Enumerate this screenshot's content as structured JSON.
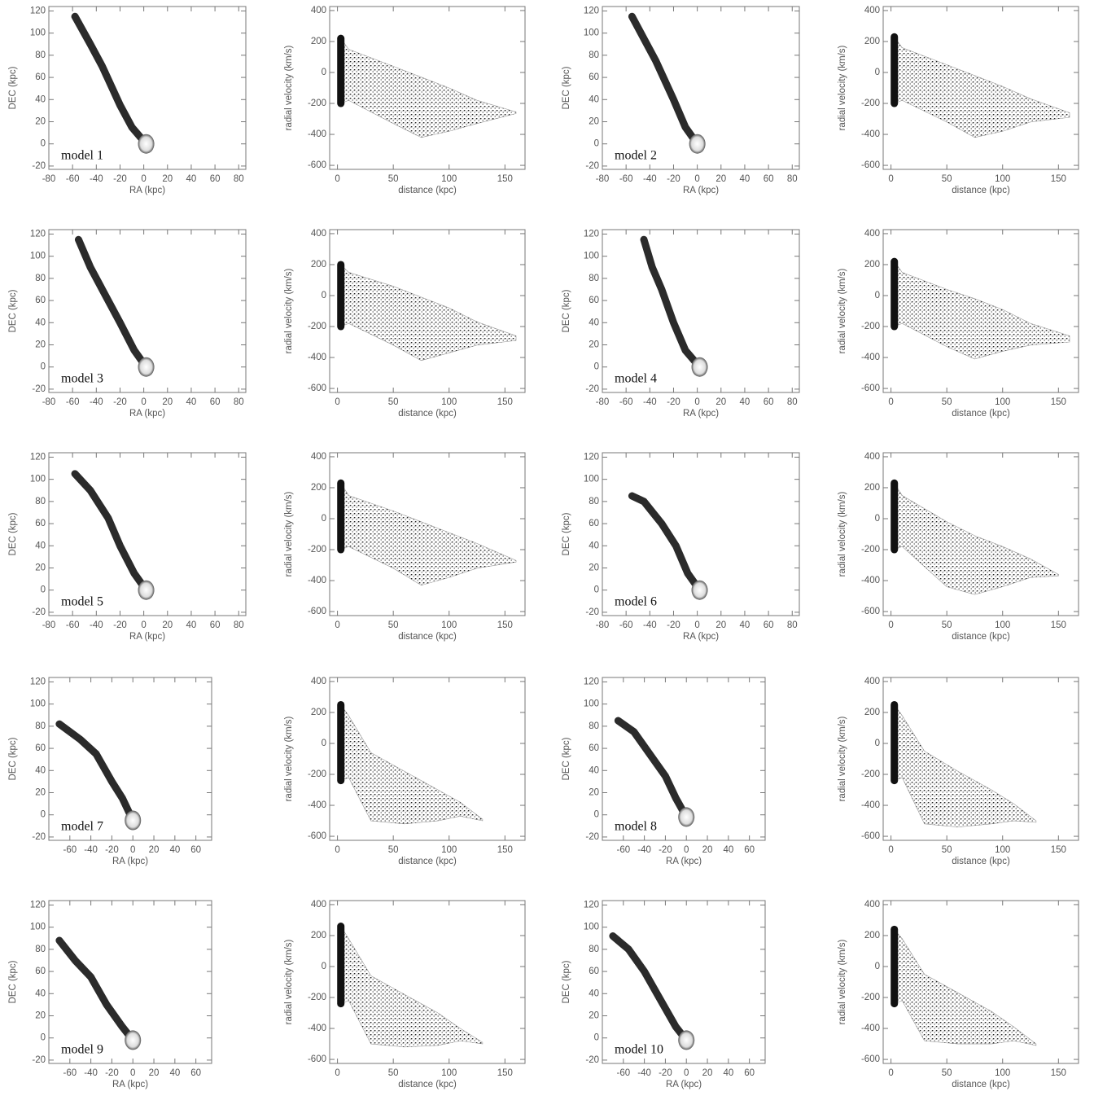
{
  "chart_data": [
    {
      "type": "stream",
      "x_label": "RA (kpc)",
      "y_label": "DEC (kpc)",
      "annotation": "model 1",
      "color": "#2b2b2b",
      "xlim": [
        -80,
        86
      ],
      "ylim": [
        -23,
        124
      ],
      "xticks": [
        -80,
        -60,
        -40,
        -20,
        0,
        20,
        40,
        60,
        80
      ],
      "yticks": [
        -20,
        0,
        20,
        40,
        60,
        80,
        100,
        120
      ],
      "x": [
        -58,
        -45,
        -35,
        -20,
        -10,
        2
      ],
      "y": [
        115,
        90,
        70,
        35,
        15,
        0
      ]
    },
    {
      "type": "phase",
      "x_label": "distance (kpc)",
      "y_label": "radial velocity (km/s)",
      "color": "#3a3a3a",
      "xlim": [
        -7,
        168
      ],
      "ylim": [
        -626,
        426
      ],
      "xticks": [
        0,
        50,
        100,
        150
      ],
      "yticks": [
        -600,
        -400,
        -200,
        0,
        200,
        400
      ],
      "x": [
        3,
        10,
        50,
        75,
        100,
        125,
        160
      ],
      "y_max": [
        220,
        150,
        40,
        -30,
        -100,
        -180,
        -255
      ],
      "y_min": [
        -200,
        -180,
        -330,
        -420,
        -380,
        -330,
        -265
      ]
    },
    {
      "type": "stream",
      "x_label": "RA (kpc)",
      "y_label": "DEC (kpc)",
      "annotation": "model 2",
      "color": "#2b2b2b",
      "xlim": [
        -80,
        86
      ],
      "ylim": [
        -23,
        124
      ],
      "xticks": [
        -80,
        -60,
        -40,
        -20,
        0,
        20,
        40,
        60,
        80
      ],
      "yticks": [
        -20,
        0,
        20,
        40,
        60,
        80,
        100,
        120
      ],
      "x": [
        -55,
        -45,
        -35,
        -20,
        -10,
        0
      ],
      "y": [
        115,
        95,
        75,
        40,
        15,
        0
      ]
    },
    {
      "type": "phase",
      "x_label": "distance (kpc)",
      "y_label": "radial velocity (km/s)",
      "color": "#3a3a3a",
      "xlim": [
        -7,
        168
      ],
      "ylim": [
        -626,
        426
      ],
      "xticks": [
        0,
        50,
        100,
        150
      ],
      "yticks": [
        -600,
        -400,
        -200,
        0,
        200,
        400
      ],
      "x": [
        3,
        10,
        50,
        75,
        100,
        125,
        160
      ],
      "y_max": [
        230,
        160,
        50,
        -20,
        -90,
        -170,
        -260
      ],
      "y_min": [
        -200,
        -180,
        -320,
        -420,
        -380,
        -320,
        -290
      ]
    },
    {
      "type": "stream",
      "x_label": "RA (kpc)",
      "y_label": "DEC (kpc)",
      "annotation": "model 3",
      "color": "#2b2b2b",
      "xlim": [
        -80,
        86
      ],
      "ylim": [
        -23,
        124
      ],
      "xticks": [
        -80,
        -60,
        -40,
        -20,
        0,
        20,
        40,
        60,
        80
      ],
      "yticks": [
        -20,
        0,
        20,
        40,
        60,
        80,
        100,
        120
      ],
      "x": [
        -55,
        -45,
        -35,
        -20,
        -8,
        2
      ],
      "y": [
        115,
        90,
        70,
        40,
        15,
        0
      ]
    },
    {
      "type": "phase",
      "x_label": "distance (kpc)",
      "y_label": "radial velocity (km/s)",
      "color": "#3a3a3a",
      "xlim": [
        -7,
        168
      ],
      "ylim": [
        -626,
        426
      ],
      "xticks": [
        0,
        50,
        100,
        150
      ],
      "yticks": [
        -600,
        -400,
        -200,
        0,
        200,
        400
      ],
      "x": [
        3,
        10,
        50,
        75,
        100,
        125,
        160
      ],
      "y_max": [
        200,
        150,
        60,
        -10,
        -80,
        -170,
        -260
      ],
      "y_min": [
        -200,
        -180,
        -320,
        -420,
        -370,
        -320,
        -290
      ]
    },
    {
      "type": "stream",
      "x_label": "RA (kpc)",
      "y_label": "DEC (kpc)",
      "annotation": "model 4",
      "color": "#2b2b2b",
      "xlim": [
        -80,
        86
      ],
      "ylim": [
        -23,
        124
      ],
      "xticks": [
        -80,
        -60,
        -40,
        -20,
        0,
        20,
        40,
        60,
        80
      ],
      "yticks": [
        -20,
        0,
        20,
        40,
        60,
        80,
        100,
        120
      ],
      "x": [
        -45,
        -38,
        -30,
        -20,
        -10,
        2
      ],
      "y": [
        115,
        90,
        70,
        40,
        15,
        0
      ]
    },
    {
      "type": "phase",
      "x_label": "distance (kpc)",
      "y_label": "radial velocity (km/s)",
      "color": "#3a3a3a",
      "xlim": [
        -7,
        168
      ],
      "ylim": [
        -626,
        426
      ],
      "xticks": [
        0,
        50,
        100,
        150
      ],
      "yticks": [
        -600,
        -400,
        -200,
        0,
        200,
        400
      ],
      "x": [
        3,
        10,
        50,
        75,
        100,
        125,
        160
      ],
      "y_max": [
        220,
        150,
        40,
        -20,
        -90,
        -180,
        -260
      ],
      "y_min": [
        -200,
        -180,
        -330,
        -410,
        -360,
        -320,
        -300
      ]
    },
    {
      "type": "stream",
      "x_label": "RA (kpc)",
      "y_label": "DEC (kpc)",
      "annotation": "model 5",
      "color": "#2b2b2b",
      "xlim": [
        -80,
        86
      ],
      "ylim": [
        -23,
        124
      ],
      "xticks": [
        -80,
        -60,
        -40,
        -20,
        0,
        20,
        40,
        60,
        80
      ],
      "yticks": [
        -20,
        0,
        20,
        40,
        60,
        80,
        100,
        120
      ],
      "x": [
        -58,
        -45,
        -30,
        -20,
        -8,
        2
      ],
      "y": [
        105,
        90,
        65,
        40,
        15,
        0
      ]
    },
    {
      "type": "phase",
      "x_label": "distance (kpc)",
      "y_label": "radial velocity (km/s)",
      "color": "#3a3a3a",
      "xlim": [
        -7,
        168
      ],
      "ylim": [
        -626,
        426
      ],
      "xticks": [
        0,
        50,
        100,
        150
      ],
      "yticks": [
        -600,
        -400,
        -200,
        0,
        200,
        400
      ],
      "x": [
        3,
        10,
        50,
        75,
        100,
        125,
        160
      ],
      "y_max": [
        230,
        150,
        50,
        -20,
        -90,
        -160,
        -270
      ],
      "y_min": [
        -200,
        -180,
        -320,
        -430,
        -380,
        -320,
        -280
      ]
    },
    {
      "type": "stream",
      "x_label": "RA (kpc)",
      "y_label": "DEC (kpc)",
      "annotation": "model 6",
      "color": "#2b2b2b",
      "xlim": [
        -80,
        86
      ],
      "ylim": [
        -23,
        124
      ],
      "xticks": [
        -80,
        -60,
        -40,
        -20,
        0,
        20,
        40,
        60,
        80
      ],
      "yticks": [
        -20,
        0,
        20,
        40,
        60,
        80,
        100,
        120
      ],
      "x": [
        -55,
        -45,
        -30,
        -18,
        -8,
        2
      ],
      "y": [
        85,
        80,
        60,
        40,
        15,
        0
      ]
    },
    {
      "type": "phase",
      "x_label": "distance (kpc)",
      "y_label": "radial velocity (km/s)",
      "color": "#3a3a3a",
      "xlim": [
        -7,
        168
      ],
      "ylim": [
        -626,
        426
      ],
      "xticks": [
        0,
        50,
        100,
        150
      ],
      "yticks": [
        -600,
        -400,
        -200,
        0,
        200,
        400
      ],
      "x": [
        3,
        10,
        50,
        75,
        100,
        125,
        150
      ],
      "y_max": [
        230,
        150,
        -20,
        -110,
        -180,
        -260,
        -360
      ],
      "y_min": [
        -200,
        -180,
        -440,
        -490,
        -440,
        -380,
        -370
      ]
    },
    {
      "type": "stream",
      "x_label": "RA (kpc)",
      "y_label": "DEC (kpc)",
      "annotation": "model 7",
      "color": "#2b2b2b",
      "xlim": [
        -80,
        75
      ],
      "ylim": [
        -23,
        124
      ],
      "xticks": [
        -60,
        -40,
        -20,
        0,
        20,
        40,
        60
      ],
      "yticks": [
        -20,
        0,
        20,
        40,
        60,
        80,
        100,
        120
      ],
      "x": [
        -70,
        -50,
        -35,
        -20,
        -10,
        0
      ],
      "y": [
        82,
        68,
        55,
        30,
        15,
        -5
      ]
    },
    {
      "type": "phase",
      "x_label": "distance (kpc)",
      "y_label": "radial velocity (km/s)",
      "color": "#3a3a3a",
      "xlim": [
        -7,
        168
      ],
      "ylim": [
        -626,
        426
      ],
      "xticks": [
        0,
        50,
        100,
        150
      ],
      "yticks": [
        -600,
        -400,
        -200,
        0,
        200,
        400
      ],
      "x": [
        3,
        10,
        30,
        60,
        90,
        110,
        130
      ],
      "y_max": [
        250,
        180,
        -60,
        -180,
        -300,
        -380,
        -490
      ],
      "y_min": [
        -240,
        -220,
        -500,
        -520,
        -500,
        -470,
        -500
      ]
    },
    {
      "type": "stream",
      "x_label": "RA (kpc)",
      "y_label": "DEC (kpc)",
      "annotation": "model 8",
      "color": "#2b2b2b",
      "xlim": [
        -80,
        75
      ],
      "ylim": [
        -23,
        124
      ],
      "xticks": [
        -60,
        -40,
        -20,
        0,
        20,
        40,
        60
      ],
      "yticks": [
        -20,
        0,
        20,
        40,
        60,
        80,
        100,
        120
      ],
      "x": [
        -65,
        -50,
        -35,
        -20,
        -10,
        0
      ],
      "y": [
        85,
        75,
        55,
        35,
        15,
        -2
      ]
    },
    {
      "type": "phase",
      "x_label": "distance (kpc)",
      "y_label": "radial velocity (km/s)",
      "color": "#3a3a3a",
      "xlim": [
        -7,
        168
      ],
      "ylim": [
        -626,
        426
      ],
      "xticks": [
        0,
        50,
        100,
        150
      ],
      "yticks": [
        -600,
        -400,
        -200,
        0,
        200,
        400
      ],
      "x": [
        3,
        10,
        30,
        60,
        90,
        110,
        130
      ],
      "y_max": [
        250,
        180,
        -50,
        -180,
        -300,
        -390,
        -500
      ],
      "y_min": [
        -240,
        -220,
        -520,
        -540,
        -520,
        -500,
        -510
      ]
    },
    {
      "type": "stream",
      "x_label": "RA (kpc)",
      "y_label": "DEC (kpc)",
      "annotation": "model 9",
      "color": "#2b2b2b",
      "xlim": [
        -80,
        75
      ],
      "ylim": [
        -23,
        124
      ],
      "xticks": [
        -60,
        -40,
        -20,
        0,
        20,
        40,
        60
      ],
      "yticks": [
        -20,
        0,
        20,
        40,
        60,
        80,
        100,
        120
      ],
      "x": [
        -70,
        -55,
        -40,
        -25,
        -10,
        0
      ],
      "y": [
        88,
        70,
        55,
        30,
        10,
        -2
      ]
    },
    {
      "type": "phase",
      "x_label": "distance (kpc)",
      "y_label": "radial velocity (km/s)",
      "color": "#3a3a3a",
      "xlim": [
        -7,
        168
      ],
      "ylim": [
        -626,
        426
      ],
      "xticks": [
        0,
        50,
        100,
        150
      ],
      "yticks": [
        -600,
        -400,
        -200,
        0,
        200,
        400
      ],
      "x": [
        3,
        10,
        30,
        60,
        90,
        110,
        130
      ],
      "y_max": [
        260,
        180,
        -60,
        -180,
        -300,
        -400,
        -490
      ],
      "y_min": [
        -240,
        -220,
        -500,
        -520,
        -510,
        -480,
        -500
      ]
    },
    {
      "type": "stream",
      "x_label": "RA (kpc)",
      "y_label": "DEC (kpc)",
      "annotation": "model 10",
      "color": "#2b2b2b",
      "xlim": [
        -80,
        75
      ],
      "ylim": [
        -23,
        124
      ],
      "xticks": [
        -60,
        -40,
        -20,
        0,
        20,
        40,
        60
      ],
      "yticks": [
        -20,
        0,
        20,
        40,
        60,
        80,
        100,
        120
      ],
      "x": [
        -70,
        -55,
        -40,
        -25,
        -10,
        0
      ],
      "y": [
        92,
        80,
        60,
        35,
        10,
        -2
      ]
    },
    {
      "type": "phase",
      "x_label": "distance (kpc)",
      "y_label": "radial velocity (km/s)",
      "color": "#3a3a3a",
      "xlim": [
        -7,
        168
      ],
      "ylim": [
        -626,
        426
      ],
      "xticks": [
        0,
        50,
        100,
        150
      ],
      "yticks": [
        -600,
        -400,
        -200,
        0,
        200,
        400
      ],
      "x": [
        3,
        10,
        30,
        60,
        90,
        110,
        130
      ],
      "y_max": [
        240,
        180,
        -50,
        -170,
        -290,
        -390,
        -500
      ],
      "y_min": [
        -240,
        -220,
        -480,
        -500,
        -500,
        -480,
        -510
      ]
    }
  ]
}
